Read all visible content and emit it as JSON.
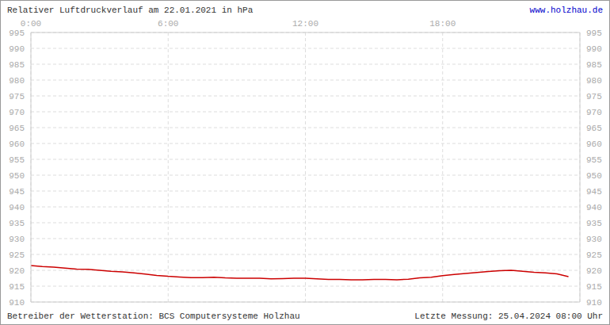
{
  "chart_data": {
    "type": "line",
    "title": "Relativer Luftdruckverlauf am 22.01.2021 in hPa",
    "annotations": [
      "www.holzhau.de",
      "Betreiber der Wetterstation: BCS Computersysteme Holzhau",
      "Letzte Messung: 25.04.2024 08:00 Uhr"
    ],
    "x": [
      0,
      0.5,
      1,
      1.5,
      2,
      2.5,
      3,
      3.5,
      4,
      4.5,
      5,
      5.5,
      6,
      6.5,
      7,
      7.5,
      8,
      8.5,
      9,
      9.5,
      10,
      10.5,
      11,
      11.5,
      12,
      12.5,
      13,
      13.5,
      14,
      14.5,
      15,
      15.5,
      16,
      16.5,
      17,
      17.5,
      18,
      18.5,
      19,
      19.5,
      20,
      20.5,
      21,
      21.5,
      22,
      22.5,
      23,
      23.5
    ],
    "values": [
      921.5,
      921.2,
      921,
      920.7,
      920.4,
      920.3,
      920,
      919.7,
      919.5,
      919.2,
      918.8,
      918.4,
      918.1,
      917.9,
      917.7,
      917.7,
      917.8,
      917.6,
      917.5,
      917.5,
      917.5,
      917.3,
      917.4,
      917.5,
      917.5,
      917.3,
      917.1,
      917.1,
      917,
      917,
      917.1,
      917.1,
      917,
      917.2,
      917.6,
      917.8,
      918.3,
      918.7,
      919,
      919.3,
      919.6,
      919.9,
      920,
      919.7,
      919.4,
      919.2,
      918.9,
      918
    ],
    "color": "#cc0000",
    "xlim": [
      0,
      24
    ],
    "xticks": [
      {
        "value": 0,
        "label": "0:00"
      },
      {
        "value": 6,
        "label": "6:00"
      },
      {
        "value": 12,
        "label": "12:00"
      },
      {
        "value": 18,
        "label": "18:00"
      }
    ],
    "ylim": [
      910,
      995
    ],
    "yticks": [
      910,
      915,
      920,
      925,
      930,
      935,
      940,
      945,
      950,
      955,
      960,
      965,
      970,
      975,
      980,
      985,
      990,
      995
    ],
    "grid": true
  }
}
